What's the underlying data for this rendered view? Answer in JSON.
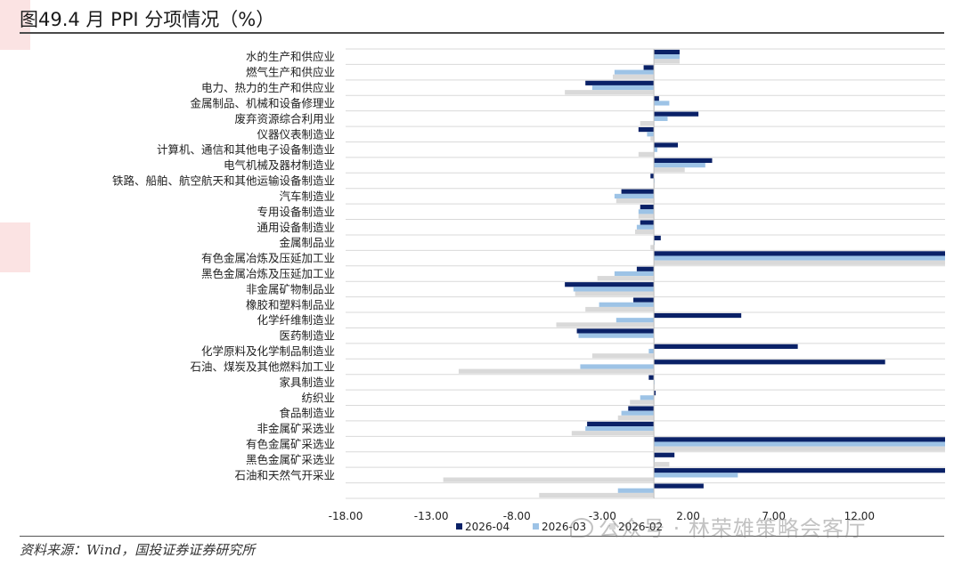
{
  "title": "图49.4 月 PPI 分项情况（%）",
  "source": "资料来源：Wind，国投证券证券研究所",
  "watermark": "公众号 · 林荣雄策略会客厅",
  "colors": {
    "series_2026_04": "#0a2167",
    "series_2026_03": "#9dc3e6",
    "series_2026_02": "#d9d9d9",
    "title_rule": "#4a4a4a",
    "grid": "#d9d9d9"
  },
  "chart_data": {
    "type": "bar",
    "orientation": "horizontal",
    "title": "",
    "xlabel": "",
    "ylabel": "",
    "xlim": [
      -18,
      17
    ],
    "x_ticks": [
      -18,
      -13,
      -8,
      -3,
      2,
      7,
      12
    ],
    "x_tick_labels": [
      "-18.00",
      "-13.00",
      "-8.00",
      "-3.00",
      "2.00",
      "7.00",
      "12.00"
    ],
    "grid": true,
    "legend_position": "bottom",
    "categories": [
      "水的生产和供应业",
      "燃气生产和供应业",
      "电力、热力的生产和供应业",
      "金属制品、机械和设备修理业",
      "废弃资源综合利用业",
      "仪器仪表制造业",
      "计算机、通信和其他电子设备制造业",
      "电气机械及器材制造业",
      "铁路、船舶、航空航天和其他运输设备制造业",
      "汽车制造业",
      "专用设备制造业",
      "通用设备制造业",
      "金属制品业",
      "有色金属冶炼及压延加工业",
      "黑色金属冶炼及压延加工业",
      "非金属矿物制品业",
      "橡胶和塑料制品业",
      "化学纤维制造业",
      "医药制造业",
      "化学原料及化学制品制造业",
      "石油、煤炭及其他燃料加工业",
      "家具制造业",
      "纺织业",
      "食品制造业",
      "非金属矿采选业",
      "有色金属矿采选业",
      "黑色金属矿采选业",
      "石油和天然气开采业",
      ""
    ],
    "series": [
      {
        "name": "2026-04",
        "values": [
          1.5,
          -0.6,
          -4.0,
          0.3,
          2.6,
          -0.9,
          1.4,
          3.4,
          -0.2,
          -1.9,
          -0.8,
          -0.8,
          0.4,
          17.0,
          -1.0,
          -5.2,
          -1.2,
          5.1,
          -4.5,
          8.4,
          13.5,
          -0.3,
          0.1,
          -1.5,
          -3.9,
          17.0,
          1.2,
          17.0,
          2.9
        ]
      },
      {
        "name": "2026-03",
        "values": [
          1.5,
          -2.3,
          -3.6,
          0.9,
          0.8,
          -0.4,
          0.2,
          3.0,
          0.0,
          -2.3,
          -0.9,
          -1.0,
          0.0,
          17.0,
          -2.3,
          -4.7,
          -3.2,
          -2.2,
          -4.4,
          -0.3,
          -4.3,
          0.0,
          -0.8,
          -1.9,
          -4.0,
          17.0,
          0.0,
          4.9,
          -2.1
        ]
      },
      {
        "name": "2026-02",
        "values": [
          1.5,
          -2.4,
          -5.2,
          0.0,
          -0.8,
          -0.2,
          -0.9,
          1.8,
          0.0,
          -2.2,
          -0.9,
          -1.1,
          -0.2,
          17.0,
          -3.3,
          -4.6,
          -4.0,
          -5.7,
          0.0,
          -3.6,
          -11.4,
          0.0,
          -1.4,
          -2.1,
          -4.8,
          17.0,
          0.9,
          -12.3,
          -6.7
        ]
      }
    ]
  }
}
